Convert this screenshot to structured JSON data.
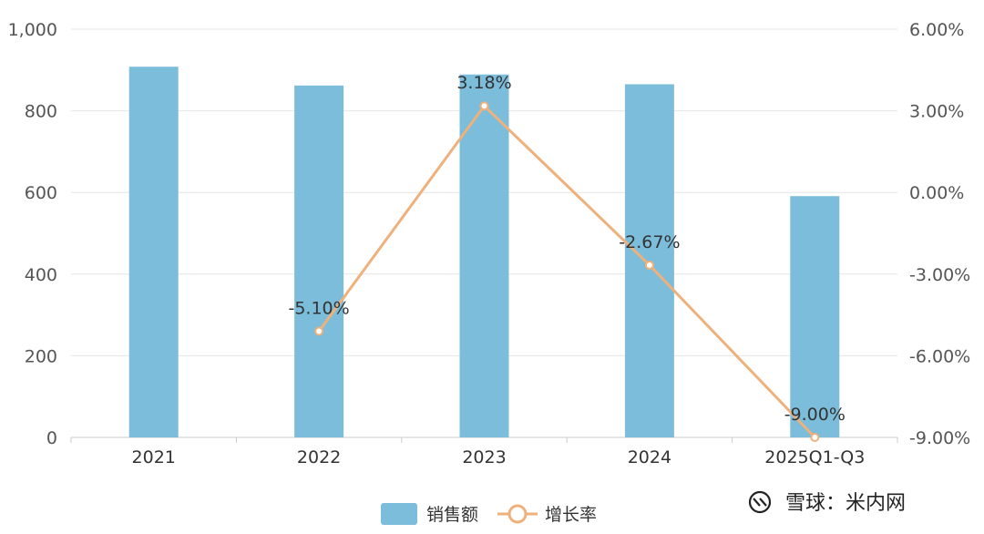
{
  "chart_data": {
    "type": "bar",
    "categories": [
      "2021",
      "2022",
      "2023",
      "2024",
      "2025Q1-Q3"
    ],
    "series": [
      {
        "name": "销售额",
        "type": "bar",
        "axis": "left",
        "color": "#7bbdda",
        "values": [
          908,
          862,
          889,
          865,
          591
        ]
      },
      {
        "name": "增长率",
        "type": "line",
        "axis": "right",
        "color": "#eeb17c",
        "values": [
          null,
          -5.1,
          3.18,
          -2.67,
          -9.0
        ],
        "labels": [
          "",
          "-5.10%",
          "3.18%",
          "-2.67%",
          "-9.00%"
        ]
      }
    ],
    "y_left": {
      "ticks": [
        "0",
        "200",
        "400",
        "600",
        "800",
        "1,000"
      ],
      "range": [
        0,
        1000
      ]
    },
    "y_right": {
      "ticks": [
        "-9.00%",
        "-6.00%",
        "-3.00%",
        "0.00%",
        "3.00%",
        "6.00%"
      ],
      "range": [
        -9,
        6
      ]
    },
    "grid": true,
    "legend_position": "bottom-center"
  },
  "watermark": {
    "text": "雪球：米内网"
  }
}
